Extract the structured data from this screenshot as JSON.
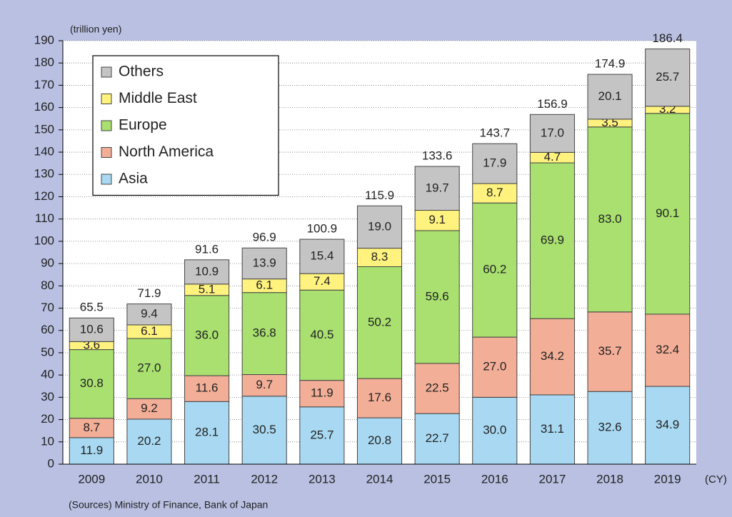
{
  "chart_data": {
    "type": "stacked_bar",
    "y_axis_label": "(trillion yen)",
    "x_axis_label": "(CY)",
    "source": "(Sources) Ministry of Finance, Bank of Japan",
    "categories": [
      "2009",
      "2010",
      "2011",
      "2012",
      "2013",
      "2014",
      "2015",
      "2016",
      "2017",
      "2018",
      "2019"
    ],
    "series": [
      {
        "name": "Asia",
        "color": "#a9d9f2",
        "values": [
          11.9,
          20.2,
          28.1,
          30.5,
          25.7,
          20.8,
          22.7,
          30.0,
          31.1,
          32.6,
          34.9
        ],
        "value_labels": [
          "11.9",
          "20.2",
          "28.1",
          "30.5",
          "25.7",
          "20.8",
          "22.7",
          "30.0",
          "31.1",
          "32.6",
          "34.9"
        ]
      },
      {
        "name": "North America",
        "color": "#f3ae97",
        "values": [
          8.7,
          9.2,
          11.6,
          9.7,
          11.9,
          17.6,
          22.5,
          27.0,
          34.2,
          35.7,
          32.4
        ],
        "value_labels": [
          "8.7",
          "9.2",
          "11.6",
          "9.7",
          "11.9",
          "17.6",
          "22.5",
          "27.0",
          "34.2",
          "35.7",
          "32.4"
        ]
      },
      {
        "name": "Europe",
        "color": "#a9e06f",
        "values": [
          30.8,
          27.0,
          36.0,
          36.8,
          40.5,
          50.2,
          59.6,
          60.2,
          69.9,
          83.0,
          90.1
        ],
        "value_labels": [
          "30.8",
          "27.0",
          "36.0",
          "36.8",
          "40.5",
          "50.2",
          "59.6",
          "60.2",
          "69.9",
          "83.0",
          "90.1"
        ]
      },
      {
        "name": "Middle East",
        "color": "#fff27e",
        "values": [
          3.6,
          6.1,
          5.1,
          6.1,
          7.4,
          8.3,
          9.1,
          8.7,
          4.7,
          3.5,
          3.2
        ],
        "value_labels": [
          "3.6",
          "6.1",
          "5.1",
          "6.1",
          "7.4",
          "8.3",
          "9.1",
          "8.7",
          "4.7",
          "3.5",
          "3.2"
        ]
      },
      {
        "name": "Others",
        "color": "#c4c4c4",
        "values": [
          10.6,
          9.4,
          10.9,
          13.9,
          15.4,
          19.0,
          19.7,
          17.9,
          17.0,
          20.1,
          25.7
        ],
        "value_labels": [
          "10.6",
          "9.4",
          "10.9",
          "13.9",
          "15.4",
          "19.0",
          "19.7",
          "17.9",
          "17.0",
          "20.1",
          "25.7"
        ]
      }
    ],
    "totals": [
      65.5,
      71.9,
      91.6,
      96.9,
      100.9,
      115.9,
      133.6,
      143.7,
      156.9,
      174.9,
      186.4
    ],
    "ylim": [
      0,
      190
    ],
    "yticks": [
      0,
      10,
      20,
      30,
      40,
      50,
      60,
      70,
      80,
      90,
      100,
      110,
      120,
      130,
      140,
      150,
      160,
      170,
      180,
      190
    ],
    "grid": true,
    "legend": "upper-left"
  }
}
